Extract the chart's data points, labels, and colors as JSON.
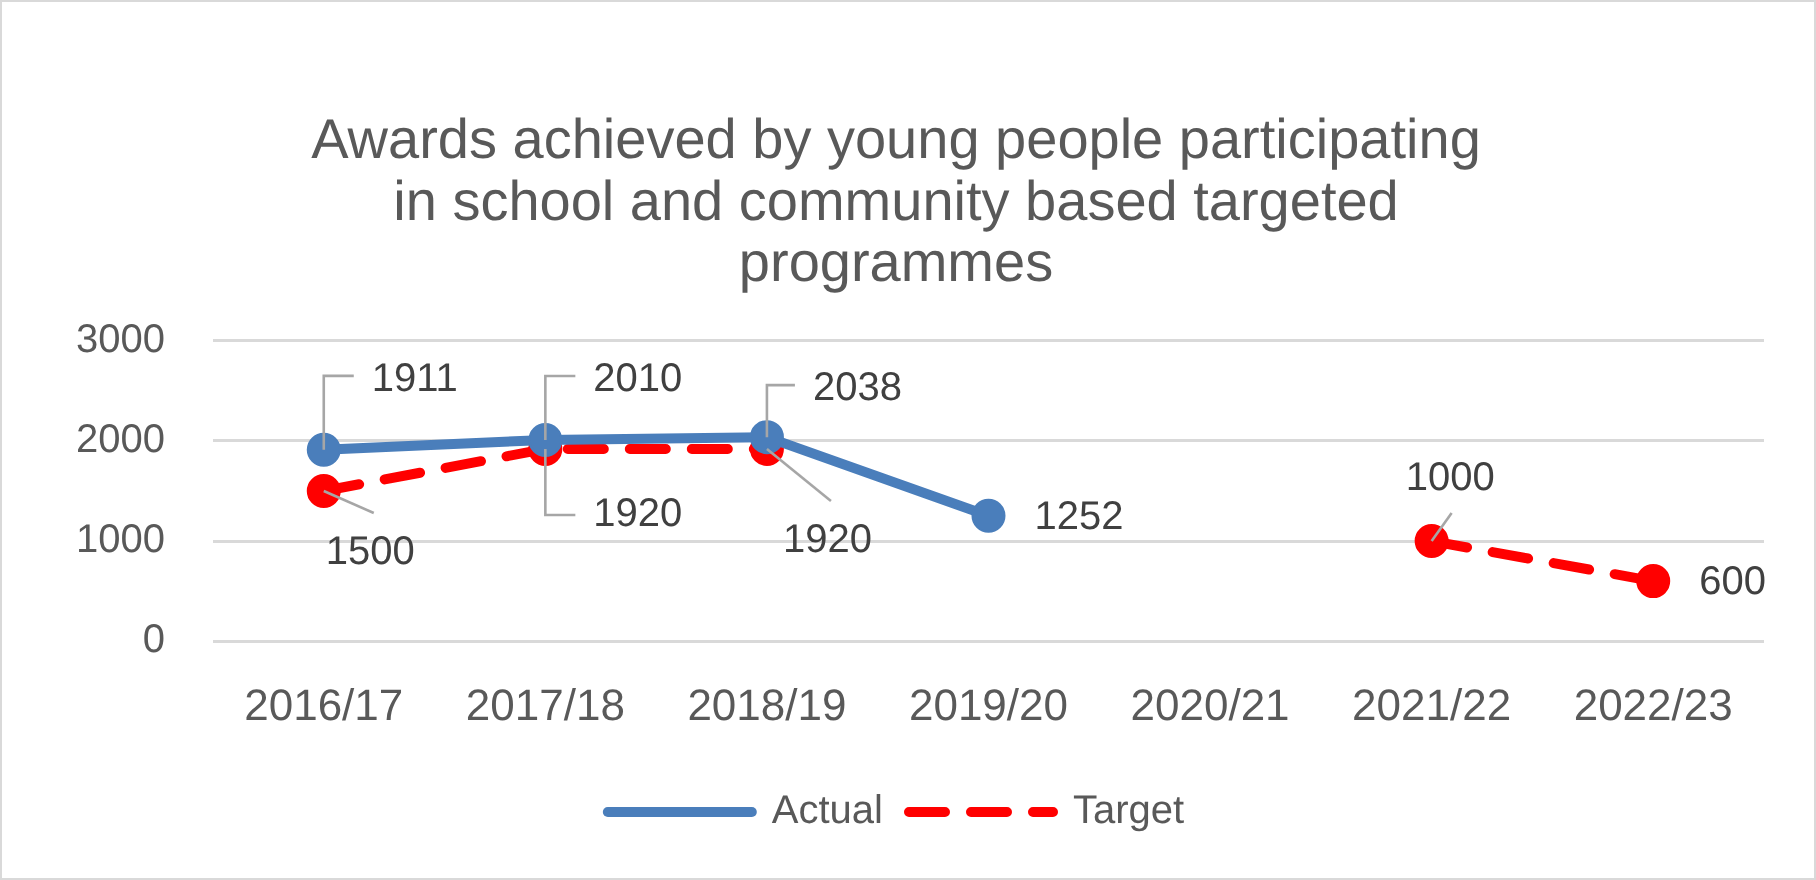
{
  "chart_data": {
    "type": "line",
    "title": "Awards achieved by young people participating in school and community based targeted programmes",
    "categories": [
      "2016/17",
      "2017/18",
      "2018/19",
      "2019/20",
      "2020/21",
      "2021/22",
      "2022/23"
    ],
    "series": [
      {
        "name": "Actual",
        "color": "#4a7ebb",
        "values": [
          1911,
          2010,
          2038,
          1252,
          null,
          null,
          null
        ]
      },
      {
        "name": "Target",
        "color": "#ff0000",
        "line_style": "dashed",
        "values": [
          1500,
          1920,
          1920,
          null,
          null,
          1000,
          600
        ]
      }
    ],
    "ylim": [
      0,
      3000
    ],
    "yticks": [
      0,
      1000,
      2000,
      3000
    ],
    "grid": "y",
    "legend": "bottom",
    "marker": "circle",
    "line_style": "solid",
    "data_labels": true
  }
}
